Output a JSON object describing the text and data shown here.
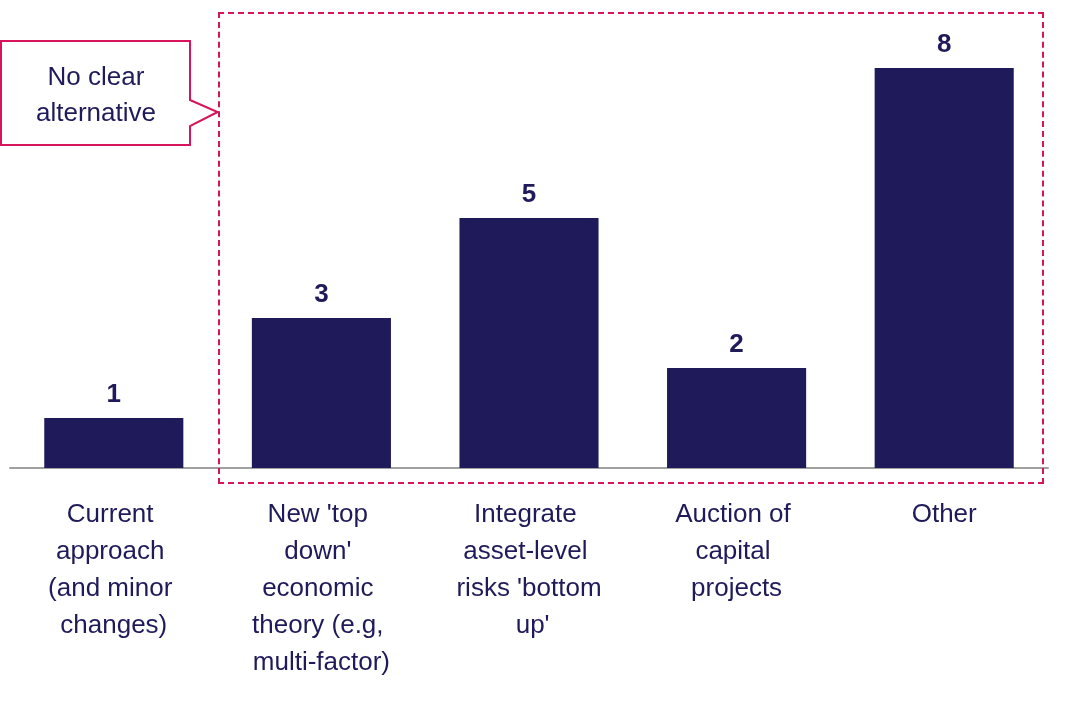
{
  "chart_data": {
    "type": "bar",
    "categories": [
      "Current approach (and minor changes)",
      "New 'top down' economic theory (e.g, multi-factor)",
      "Integrate asset-level risks 'bottom up'",
      "Auction of capital projects",
      "Other"
    ],
    "values": [
      1,
      3,
      5,
      2,
      8
    ],
    "color": "#1f1a5a",
    "data_labels": true,
    "annotations": [
      "No clear alternative"
    ]
  }
}
